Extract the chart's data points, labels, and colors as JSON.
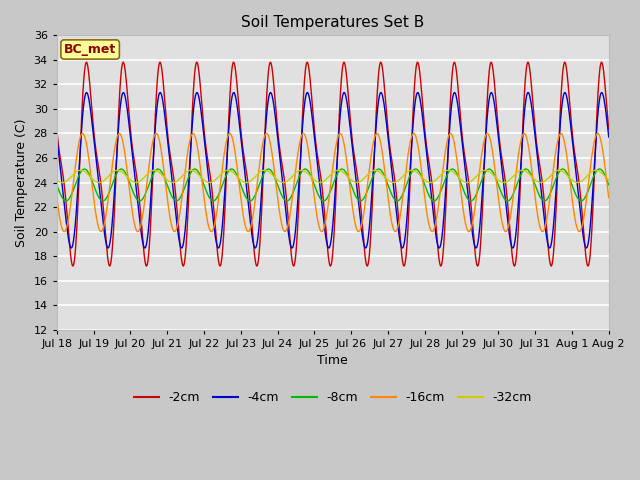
{
  "title": "Soil Temperatures Set B",
  "xlabel": "Time",
  "ylabel": "Soil Temperature (C)",
  "ylim": [
    12,
    36
  ],
  "yticks": [
    12,
    14,
    16,
    18,
    20,
    22,
    24,
    26,
    28,
    30,
    32,
    34,
    36
  ],
  "annotation": "BC_met",
  "fig_facecolor": "#c8c8c8",
  "ax_facecolor": "#e0e0e0",
  "series": [
    {
      "label": "-2cm",
      "color": "#cc0000",
      "mean": 25.5,
      "amp": 9.5,
      "phase": 0.62,
      "sharp": 3.0
    },
    {
      "label": "-4cm",
      "color": "#0000cc",
      "mean": 25.0,
      "amp": 7.0,
      "phase": 0.6,
      "sharp": 2.0
    },
    {
      "label": "-8cm",
      "color": "#00bb00",
      "mean": 23.8,
      "amp": 1.3,
      "phase": 0.5,
      "sharp": 1.0
    },
    {
      "label": "-16cm",
      "color": "#ff8800",
      "mean": 24.0,
      "amp": 4.0,
      "phase": 0.45,
      "sharp": 1.0
    },
    {
      "label": "-32cm",
      "color": "#cccc00",
      "mean": 24.5,
      "amp": 0.5,
      "phase": 0.4,
      "sharp": 1.0
    }
  ],
  "xtick_labels": [
    "Jul 18",
    "Jul 19",
    "Jul 20",
    "Jul 21",
    "Jul 22",
    "Jul 23",
    "Jul 24",
    "Jul 25",
    "Jul 26",
    "Jul 27",
    "Jul 28",
    "Jul 29",
    "Jul 30",
    "Jul 31",
    "Aug 1",
    "Aug 2"
  ],
  "legend_colors": [
    "#cc0000",
    "#0000cc",
    "#00bb00",
    "#ff8800",
    "#cccc00"
  ],
  "legend_labels": [
    "-2cm",
    "-4cm",
    "-8cm",
    "-16cm",
    "-32cm"
  ]
}
